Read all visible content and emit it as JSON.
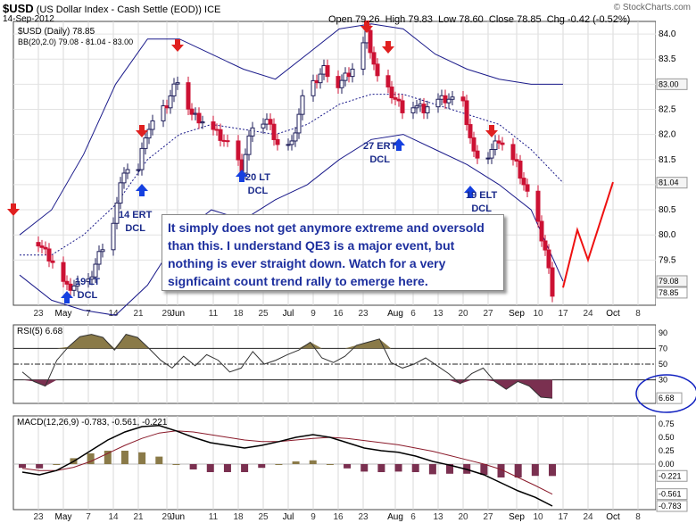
{
  "header": {
    "symbol": "$USD",
    "description": "(US Dollar Index - Cash Settle (EOD))",
    "exchange": "ICE",
    "date": "14-Sep-2012",
    "open_label": "Open",
    "open": "79.26",
    "high_label": "High",
    "high": "79.83",
    "low_label": "Low",
    "low": "78.60",
    "close_label": "Close",
    "close": "78.85",
    "chg_label": "Chg",
    "chg": "-0.42 (-0.52%)",
    "legend_price": "$USD (Daily) 78.85",
    "legend_bb": "BB(20,2.0) 79.08 - 81.04 - 83.00",
    "watermark": "© StockCharts.com"
  },
  "annotation": {
    "lines": [
      "It simply does not get anymore extreme and oversold",
      "than this.  I understand QE3 is a major event, but",
      "nothing is ever straight down.  Watch for a very",
      "signficaint count trend rally to emerge here."
    ]
  },
  "cycle_labels": [
    {
      "text": [
        "19 LT",
        "DCL"
      ]
    },
    {
      "text": [
        "14 ERT",
        "DCL"
      ]
    },
    {
      "text": [
        "20 LT",
        "DCL"
      ]
    },
    {
      "text": [
        "27 ERT",
        "DCL"
      ]
    },
    {
      "text": [
        "19 ELT",
        "DCL"
      ]
    }
  ],
  "colors": {
    "up": "#1e1e5a",
    "down": "#cc1133",
    "bb": "#1a1a8a",
    "rsi_fill": "#8a7a48",
    "rsi_low_fill": "#7a3050",
    "macd_line": "#000000",
    "signal_line": "#8a1a2a",
    "histogram_pos": "#8a7a48",
    "histogram_neg": "#7a3050",
    "arrow_up": "#1540e0",
    "arrow_down": "#e02020",
    "projection": "#ee1111",
    "circle": "#1020c0"
  },
  "chart_data": [
    {
      "type": "candlestick",
      "title": "$USD (US Dollar Index - Cash Settle (EOD))",
      "x_tick_labels": [
        "23",
        "May",
        "7",
        "14",
        "21",
        "29",
        "Jun",
        "11",
        "18",
        "25",
        "Jul",
        "9",
        "16",
        "23",
        "Aug",
        "6",
        "13",
        "20",
        "27",
        "Sep",
        "10",
        "17",
        "24",
        "Oct",
        "8"
      ],
      "y_tick_labels": [
        "79.5",
        "80.0",
        "80.5",
        "81.0",
        "81.5",
        "82.0",
        "82.5",
        "83.0",
        "83.5",
        "84.0"
      ],
      "ylim": [
        78.6,
        84.25
      ],
      "price_labels": [
        "83.00",
        "81.04",
        "79.08",
        "78.85"
      ],
      "close_path": [
        {
          "d": "2012-04-23",
          "c": 79.85
        },
        {
          "d": "2012-04-27",
          "c": 79.45
        },
        {
          "d": "2012-05-01",
          "c": 78.95
        },
        {
          "d": "2012-05-07",
          "c": 79.05
        },
        {
          "d": "2012-05-10",
          "c": 79.6
        },
        {
          "d": "2012-05-14",
          "c": 80.3
        },
        {
          "d": "2012-05-17",
          "c": 81.3
        },
        {
          "d": "2012-05-21",
          "c": 81.3
        },
        {
          "d": "2012-05-23",
          "c": 82.0
        },
        {
          "d": "2012-05-29",
          "c": 82.6
        },
        {
          "d": "2012-06-01",
          "c": 83.1
        },
        {
          "d": "2012-06-05",
          "c": 82.4
        },
        {
          "d": "2012-06-11",
          "c": 82.1
        },
        {
          "d": "2012-06-15",
          "c": 81.8
        },
        {
          "d": "2012-06-19",
          "c": 81.3
        },
        {
          "d": "2012-06-22",
          "c": 82.2
        },
        {
          "d": "2012-06-26",
          "c": 82.3
        },
        {
          "d": "2012-06-29",
          "c": 81.8
        },
        {
          "d": "2012-07-03",
          "c": 81.8
        },
        {
          "d": "2012-07-06",
          "c": 82.7
        },
        {
          "d": "2012-07-12",
          "c": 83.3
        },
        {
          "d": "2012-07-16",
          "c": 83.0
        },
        {
          "d": "2012-07-20",
          "c": 83.3
        },
        {
          "d": "2012-07-24",
          "c": 84.0
        },
        {
          "d": "2012-07-27",
          "c": 83.1
        },
        {
          "d": "2012-07-31",
          "c": 82.8
        },
        {
          "d": "2012-08-03",
          "c": 82.5
        },
        {
          "d": "2012-08-06",
          "c": 82.6
        },
        {
          "d": "2012-08-09",
          "c": 82.5
        },
        {
          "d": "2012-08-13",
          "c": 82.7
        },
        {
          "d": "2012-08-16",
          "c": 82.7
        },
        {
          "d": "2012-08-20",
          "c": 82.6
        },
        {
          "d": "2012-08-23",
          "c": 81.6
        },
        {
          "d": "2012-08-27",
          "c": 81.6
        },
        {
          "d": "2012-08-30",
          "c": 81.9
        },
        {
          "d": "2012-09-04",
          "c": 81.4
        },
        {
          "d": "2012-09-06",
          "c": 81.0
        },
        {
          "d": "2012-09-10",
          "c": 80.2
        },
        {
          "d": "2012-09-12",
          "c": 79.7
        },
        {
          "d": "2012-09-14",
          "c": 78.85
        }
      ],
      "bollinger_upper": [
        80.0,
        80.5,
        81.6,
        83.0,
        83.9,
        83.9,
        83.6,
        83.3,
        83.1,
        83.6,
        84.1,
        84.2,
        84.1,
        83.6,
        83.3,
        83.1,
        83.0,
        83.0
      ],
      "bollinger_middle": [
        79.6,
        79.6,
        80.0,
        80.6,
        81.5,
        82.0,
        82.2,
        82.1,
        82.0,
        82.2,
        82.6,
        82.8,
        82.8,
        82.6,
        82.4,
        82.2,
        81.7,
        81.04
      ],
      "bollinger_lower": [
        79.2,
        78.7,
        78.5,
        78.4,
        79.0,
        80.0,
        80.5,
        80.3,
        80.7,
        81.0,
        81.5,
        81.9,
        82.0,
        81.7,
        81.4,
        81.0,
        80.5,
        79.08
      ],
      "projection": [
        {
          "d": "2012-09-17",
          "c": 78.95
        },
        {
          "d": "2012-09-21",
          "c": 80.1
        },
        {
          "d": "2012-09-24",
          "c": 79.5
        },
        {
          "d": "2012-10-01",
          "c": 81.05
        }
      ]
    },
    {
      "type": "line",
      "name": "RSI(5) 6.68",
      "y_tick_labels": [
        "30",
        "50",
        "70",
        "90"
      ],
      "reference_lines": [
        30,
        50,
        70
      ],
      "ylim": [
        0,
        100
      ],
      "last_value_label": "6.68",
      "values": [
        40,
        28,
        22,
        55,
        72,
        85,
        88,
        84,
        68,
        88,
        84,
        70,
        55,
        45,
        60,
        48,
        62,
        55,
        40,
        45,
        66,
        50,
        55,
        62,
        68,
        78,
        58,
        52,
        60,
        74,
        78,
        82,
        52,
        45,
        50,
        58,
        48,
        38,
        25,
        38,
        45,
        28,
        18,
        28,
        22,
        8,
        6.68
      ]
    },
    {
      "type": "line",
      "name": "MACD(12,26,9)",
      "legend": "MACD(12,26,9) -0.783, -0.561, -0.221",
      "y_tick_labels": [
        "0.75",
        "0.50",
        "0.25",
        "0.00"
      ],
      "price_labels": [
        "-0.221",
        "-0.561",
        "-0.783"
      ],
      "ylim": [
        -0.85,
        0.9
      ],
      "macd": [
        -0.15,
        -0.2,
        -0.12,
        0.05,
        0.25,
        0.45,
        0.6,
        0.7,
        0.72,
        0.62,
        0.5,
        0.4,
        0.35,
        0.3,
        0.35,
        0.42,
        0.5,
        0.55,
        0.5,
        0.4,
        0.3,
        0.25,
        0.22,
        0.15,
        0.05,
        -0.02,
        -0.1,
        -0.2,
        -0.35,
        -0.5,
        -0.62,
        -0.783
      ],
      "signal": [
        -0.08,
        -0.12,
        -0.12,
        -0.06,
        0.05,
        0.2,
        0.35,
        0.48,
        0.58,
        0.62,
        0.6,
        0.55,
        0.5,
        0.45,
        0.42,
        0.42,
        0.45,
        0.48,
        0.5,
        0.48,
        0.44,
        0.4,
        0.36,
        0.3,
        0.24,
        0.16,
        0.08,
        0.0,
        -0.1,
        -0.25,
        -0.4,
        -0.561
      ]
    }
  ]
}
